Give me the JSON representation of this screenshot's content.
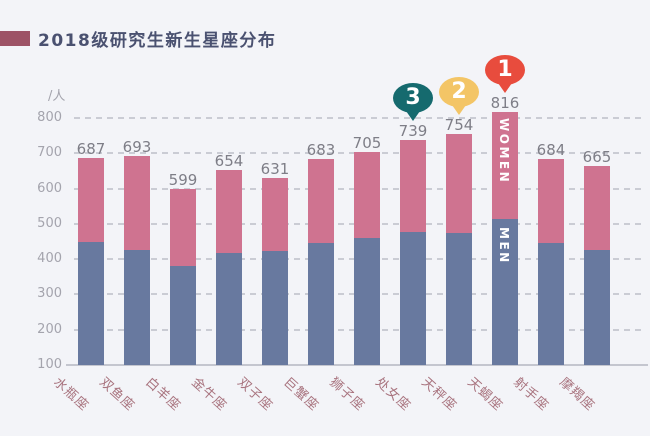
{
  "page": {
    "background_color": "#f3f4f8"
  },
  "header": {
    "marker_color": "#9d5366"
  },
  "chart_data": {
    "type": "bar",
    "stacked": true,
    "title": "2018级研究生新生星座分布",
    "unit_label": "/人",
    "categories": [
      "水瓶座",
      "双鱼座",
      "白羊座",
      "金牛座",
      "双子座",
      "巨蟹座",
      "狮子座",
      "处女座",
      "天秤座",
      "天蝎座",
      "射手座",
      "摩羯座"
    ],
    "totals": [
      687,
      693,
      599,
      654,
      631,
      683,
      705,
      739,
      754,
      816,
      684,
      665
    ],
    "series": [
      {
        "name": "MEN",
        "color": "#68799f",
        "values_estimated": [
          448,
          425,
          380,
          418,
          424,
          446,
          461,
          477,
          474,
          515,
          446,
          425
        ]
      },
      {
        "name": "WOMEN",
        "color": "#cf7390",
        "values_estimated": [
          239,
          268,
          219,
          236,
          207,
          237,
          244,
          262,
          280,
          301,
          238,
          240
        ]
      }
    ],
    "ylim": [
      100,
      800
    ],
    "yticks": [
      "100",
      "200",
      "300",
      "400",
      "500",
      "600",
      "700",
      "800"
    ],
    "grid": "horizontal-dashed",
    "legend": "none",
    "axis_colors": {
      "tick_label": "#a4a4ad",
      "value_label": "#7e7e87",
      "x_label": "#a8737e",
      "gridline": "#caccd4",
      "axis_line": "#c4c6cf"
    },
    "rank_badges": [
      {
        "rank": "3",
        "category": "处女座",
        "color": "#156a6e"
      },
      {
        "rank": "2",
        "category": "天秤座",
        "color": "#f3c566"
      },
      {
        "rank": "1",
        "category": "天蝎座",
        "color": "#e84c3d"
      }
    ],
    "in_bar_labels": {
      "category": "天蝎座",
      "top_label": "WOMEN",
      "bottom_label": "MEN"
    }
  }
}
